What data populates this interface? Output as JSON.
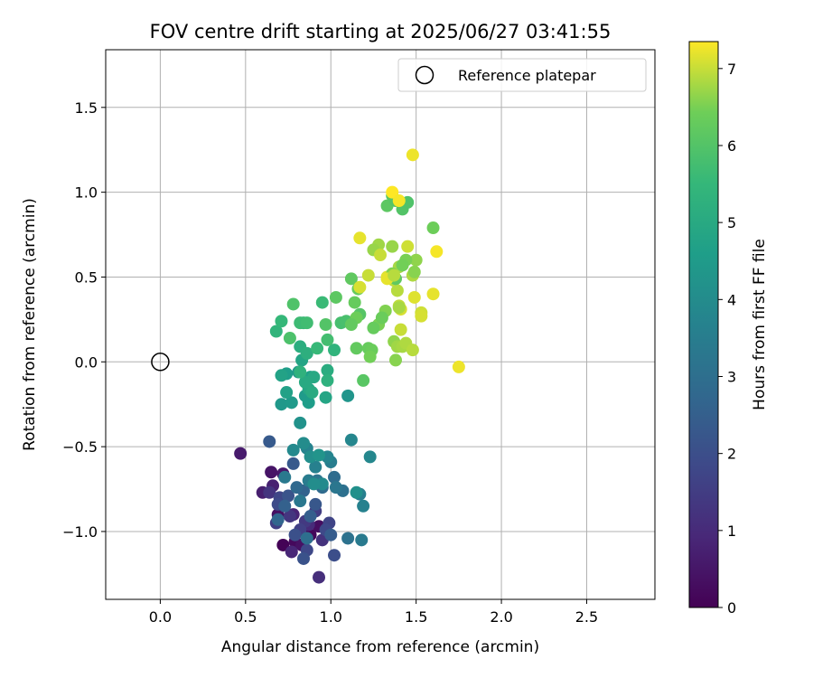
{
  "chart_data": {
    "type": "scatter",
    "title": "FOV centre drift starting at 2025/06/27 03:41:55",
    "xlabel": "Angular distance from reference (arcmin)",
    "ylabel": "Rotation from reference (arcmin)",
    "xlim": [
      -0.32,
      2.9
    ],
    "ylim": [
      -1.4,
      1.84
    ],
    "xticks": [
      0.0,
      0.5,
      1.0,
      1.5,
      2.0,
      2.5
    ],
    "xtick_labels": [
      "0.0",
      "0.5",
      "1.0",
      "1.5",
      "2.0",
      "2.5"
    ],
    "yticks": [
      -1.0,
      -0.5,
      0.0,
      0.5,
      1.0,
      1.5
    ],
    "ytick_labels": [
      "−1.0",
      "−0.5",
      "0.0",
      "0.5",
      "1.0",
      "1.5"
    ],
    "grid": true,
    "legend": {
      "placement": "top-right",
      "entries": [
        "Reference platepar"
      ]
    },
    "reference_point": {
      "x": 0.0,
      "y": 0.0
    },
    "colorbar": {
      "label": "Hours from first FF file",
      "colormap": "viridis",
      "range": [
        0,
        7.35
      ],
      "ticks": [
        0,
        1,
        2,
        3,
        4,
        5,
        6,
        7
      ],
      "tick_labels": [
        "0",
        "1",
        "2",
        "3",
        "4",
        "5",
        "6",
        "7"
      ]
    },
    "points": [
      {
        "x": 0.72,
        "y": -1.08,
        "c": 0.05
      },
      {
        "x": 0.88,
        "y": -1.02,
        "c": 0.15
      },
      {
        "x": 0.79,
        "y": -1.06,
        "c": 0.2
      },
      {
        "x": 0.93,
        "y": -0.97,
        "c": 0.3
      },
      {
        "x": 0.69,
        "y": -0.9,
        "c": 0.35
      },
      {
        "x": 0.83,
        "y": -1.08,
        "c": 0.4
      },
      {
        "x": 0.65,
        "y": -0.65,
        "c": 0.45
      },
      {
        "x": 0.72,
        "y": -0.66,
        "c": 0.55
      },
      {
        "x": 0.47,
        "y": -0.54,
        "c": 0.6
      },
      {
        "x": 0.6,
        "y": -0.77,
        "c": 0.7
      },
      {
        "x": 0.66,
        "y": -0.73,
        "c": 0.75
      },
      {
        "x": 0.78,
        "y": -0.9,
        "c": 0.85
      },
      {
        "x": 0.77,
        "y": -1.12,
        "c": 0.9
      },
      {
        "x": 0.87,
        "y": -0.96,
        "c": 1.0
      },
      {
        "x": 0.93,
        "y": -1.27,
        "c": 1.1
      },
      {
        "x": 0.95,
        "y": -1.05,
        "c": 1.2
      },
      {
        "x": 0.64,
        "y": -0.77,
        "c": 1.25
      },
      {
        "x": 0.76,
        "y": -0.91,
        "c": 1.3
      },
      {
        "x": 0.85,
        "y": -0.94,
        "c": 1.4
      },
      {
        "x": 0.91,
        "y": -0.88,
        "c": 1.5
      },
      {
        "x": 0.68,
        "y": -0.95,
        "c": 1.55
      },
      {
        "x": 0.82,
        "y": -0.99,
        "c": 1.6
      },
      {
        "x": 0.99,
        "y": -0.95,
        "c": 1.7
      },
      {
        "x": 0.7,
        "y": -0.8,
        "c": 1.75
      },
      {
        "x": 0.86,
        "y": -1.11,
        "c": 1.8
      },
      {
        "x": 0.97,
        "y": -0.99,
        "c": 1.85
      },
      {
        "x": 0.69,
        "y": -0.84,
        "c": 1.9
      },
      {
        "x": 1.02,
        "y": -1.14,
        "c": 2.0
      },
      {
        "x": 0.79,
        "y": -1.02,
        "c": 2.05
      },
      {
        "x": 0.84,
        "y": -1.16,
        "c": 2.1
      },
      {
        "x": 0.75,
        "y": -0.79,
        "c": 2.15
      },
      {
        "x": 0.91,
        "y": -0.84,
        "c": 2.25
      },
      {
        "x": 0.78,
        "y": -0.6,
        "c": 2.3
      },
      {
        "x": 0.64,
        "y": -0.47,
        "c": 2.35
      },
      {
        "x": 1.0,
        "y": -1.02,
        "c": 2.4
      },
      {
        "x": 0.88,
        "y": -0.91,
        "c": 2.5
      },
      {
        "x": 0.73,
        "y": -0.85,
        "c": 2.55
      },
      {
        "x": 0.84,
        "y": -0.76,
        "c": 2.6
      },
      {
        "x": 0.69,
        "y": -0.93,
        "c": 2.7
      },
      {
        "x": 0.8,
        "y": -0.74,
        "c": 2.8
      },
      {
        "x": 0.95,
        "y": -0.74,
        "c": 2.85
      },
      {
        "x": 1.02,
        "y": -0.68,
        "c": 2.9
      },
      {
        "x": 0.86,
        "y": -1.04,
        "c": 3.0
      },
      {
        "x": 1.07,
        "y": -0.76,
        "c": 3.05
      },
      {
        "x": 1.1,
        "y": -1.04,
        "c": 3.1
      },
      {
        "x": 0.92,
        "y": -0.7,
        "c": 3.2
      },
      {
        "x": 1.03,
        "y": -0.74,
        "c": 3.25
      },
      {
        "x": 0.82,
        "y": -0.82,
        "c": 3.3
      },
      {
        "x": 0.73,
        "y": -0.68,
        "c": 3.35
      },
      {
        "x": 1.18,
        "y": -1.05,
        "c": 3.4
      },
      {
        "x": 0.87,
        "y": -0.7,
        "c": 3.45
      },
      {
        "x": 1.0,
        "y": -0.59,
        "c": 3.5
      },
      {
        "x": 1.17,
        "y": -0.78,
        "c": 3.55
      },
      {
        "x": 0.91,
        "y": -0.62,
        "c": 3.6
      },
      {
        "x": 1.19,
        "y": -0.85,
        "c": 3.65
      },
      {
        "x": 0.86,
        "y": -0.51,
        "c": 3.7
      },
      {
        "x": 0.98,
        "y": -0.56,
        "c": 3.75
      },
      {
        "x": 1.12,
        "y": -0.46,
        "c": 3.8
      },
      {
        "x": 1.23,
        "y": -0.56,
        "c": 3.85
      },
      {
        "x": 0.78,
        "y": -0.52,
        "c": 3.9
      },
      {
        "x": 0.95,
        "y": -0.72,
        "c": 3.95
      },
      {
        "x": 0.84,
        "y": -0.48,
        "c": 4.0
      },
      {
        "x": 0.9,
        "y": -0.72,
        "c": 4.05
      },
      {
        "x": 0.88,
        "y": -0.56,
        "c": 4.1
      },
      {
        "x": 1.15,
        "y": -0.77,
        "c": 4.15
      },
      {
        "x": 0.82,
        "y": -0.36,
        "c": 4.2
      },
      {
        "x": 0.93,
        "y": -0.55,
        "c": 4.25
      },
      {
        "x": 1.1,
        "y": -0.2,
        "c": 4.3
      },
      {
        "x": 0.81,
        "y": -0.06,
        "c": 4.35
      },
      {
        "x": 0.71,
        "y": -0.25,
        "c": 4.4
      },
      {
        "x": 0.77,
        "y": -0.24,
        "c": 4.45
      },
      {
        "x": 0.85,
        "y": -0.2,
        "c": 4.5
      },
      {
        "x": 0.87,
        "y": -0.24,
        "c": 4.55
      },
      {
        "x": 0.74,
        "y": -0.07,
        "c": 4.6
      },
      {
        "x": 0.88,
        "y": -0.09,
        "c": 4.65
      },
      {
        "x": 0.74,
        "y": -0.18,
        "c": 4.7
      },
      {
        "x": 0.71,
        "y": -0.08,
        "c": 4.75
      },
      {
        "x": 0.83,
        "y": 0.01,
        "c": 4.8
      },
      {
        "x": 0.97,
        "y": -0.21,
        "c": 4.85
      },
      {
        "x": 0.87,
        "y": -0.16,
        "c": 4.9
      },
      {
        "x": 0.9,
        "y": -0.09,
        "c": 4.95
      },
      {
        "x": 0.85,
        "y": -0.12,
        "c": 5.0
      },
      {
        "x": 0.89,
        "y": -0.18,
        "c": 5.05
      },
      {
        "x": 0.98,
        "y": -0.05,
        "c": 5.1
      },
      {
        "x": 0.82,
        "y": 0.09,
        "c": 5.15
      },
      {
        "x": 0.86,
        "y": 0.05,
        "c": 5.2
      },
      {
        "x": 0.98,
        "y": -0.11,
        "c": 5.25
      },
      {
        "x": 0.82,
        "y": -0.06,
        "c": 5.3
      },
      {
        "x": 1.02,
        "y": 0.07,
        "c": 5.35
      },
      {
        "x": 0.68,
        "y": 0.18,
        "c": 5.4
      },
      {
        "x": 0.84,
        "y": 0.23,
        "c": 5.45
      },
      {
        "x": 0.71,
        "y": 0.24,
        "c": 5.5
      },
      {
        "x": 0.92,
        "y": 0.08,
        "c": 5.55
      },
      {
        "x": 0.95,
        "y": 0.35,
        "c": 5.6
      },
      {
        "x": 0.82,
        "y": 0.23,
        "c": 5.65
      },
      {
        "x": 0.86,
        "y": 0.23,
        "c": 5.7
      },
      {
        "x": 0.98,
        "y": 0.13,
        "c": 5.75
      },
      {
        "x": 1.06,
        "y": 0.23,
        "c": 5.8
      },
      {
        "x": 1.09,
        "y": 0.24,
        "c": 5.85
      },
      {
        "x": 0.76,
        "y": 0.14,
        "c": 5.9
      },
      {
        "x": 0.78,
        "y": 0.34,
        "c": 5.95
      },
      {
        "x": 0.97,
        "y": 0.22,
        "c": 6.0
      },
      {
        "x": 1.17,
        "y": 0.28,
        "c": 6.05
      },
      {
        "x": 1.19,
        "y": -0.11,
        "c": 6.1
      },
      {
        "x": 1.03,
        "y": 0.38,
        "c": 6.15
      },
      {
        "x": 1.12,
        "y": 0.49,
        "c": 6.2
      },
      {
        "x": 1.15,
        "y": 0.08,
        "c": 6.25
      },
      {
        "x": 1.22,
        "y": 0.08,
        "c": 6.3
      },
      {
        "x": 1.24,
        "y": 0.07,
        "c": 6.35
      },
      {
        "x": 1.15,
        "y": 0.26,
        "c": 6.4
      },
      {
        "x": 1.23,
        "y": 0.03,
        "c": 6.45
      },
      {
        "x": 1.28,
        "y": 0.22,
        "c": 6.5
      },
      {
        "x": 1.32,
        "y": 0.3,
        "c": 6.55
      },
      {
        "x": 1.38,
        "y": 0.01,
        "c": 6.6
      },
      {
        "x": 1.37,
        "y": 0.12,
        "c": 6.65
      },
      {
        "x": 1.36,
        "y": 0.68,
        "c": 6.7
      },
      {
        "x": 1.39,
        "y": 0.09,
        "c": 6.75
      },
      {
        "x": 1.42,
        "y": 0.09,
        "c": 6.8
      },
      {
        "x": 1.44,
        "y": 0.11,
        "c": 6.85
      },
      {
        "x": 1.48,
        "y": 0.07,
        "c": 6.9
      },
      {
        "x": 1.4,
        "y": 0.33,
        "c": 6.95
      },
      {
        "x": 1.41,
        "y": 0.19,
        "c": 7.0
      },
      {
        "x": 1.53,
        "y": 0.29,
        "c": 7.05
      },
      {
        "x": 1.53,
        "y": 0.27,
        "c": 7.1
      },
      {
        "x": 1.49,
        "y": 0.38,
        "c": 7.15
      },
      {
        "x": 1.6,
        "y": 0.4,
        "c": 7.2
      },
      {
        "x": 1.48,
        "y": 1.22,
        "c": 7.25
      },
      {
        "x": 1.62,
        "y": 0.65,
        "c": 7.3
      },
      {
        "x": 1.75,
        "y": -0.03,
        "c": 7.25
      },
      {
        "x": 1.17,
        "y": 0.73,
        "c": 7.2
      },
      {
        "x": 1.33,
        "y": 0.5,
        "c": 7.15
      },
      {
        "x": 1.41,
        "y": 0.31,
        "c": 7.1
      },
      {
        "x": 1.45,
        "y": 0.68,
        "c": 7.05
      },
      {
        "x": 1.22,
        "y": 0.51,
        "c": 7.0
      },
      {
        "x": 1.37,
        "y": 0.48,
        "c": 6.95
      },
      {
        "x": 1.39,
        "y": 0.42,
        "c": 6.9
      },
      {
        "x": 1.48,
        "y": 0.51,
        "c": 6.85
      },
      {
        "x": 1.4,
        "y": 0.56,
        "c": 6.8
      },
      {
        "x": 1.28,
        "y": 0.69,
        "c": 6.75
      },
      {
        "x": 1.25,
        "y": 0.66,
        "c": 6.7
      },
      {
        "x": 1.5,
        "y": 0.6,
        "c": 6.65
      },
      {
        "x": 1.49,
        "y": 0.53,
        "c": 6.6
      },
      {
        "x": 1.36,
        "y": 0.52,
        "c": 6.55
      },
      {
        "x": 1.44,
        "y": 0.6,
        "c": 6.5
      },
      {
        "x": 1.42,
        "y": 0.57,
        "c": 6.45
      },
      {
        "x": 1.6,
        "y": 0.79,
        "c": 6.4
      },
      {
        "x": 1.3,
        "y": 0.26,
        "c": 6.35
      },
      {
        "x": 1.25,
        "y": 0.2,
        "c": 6.3
      },
      {
        "x": 1.16,
        "y": 0.43,
        "c": 6.3
      },
      {
        "x": 1.12,
        "y": 0.22,
        "c": 6.25
      },
      {
        "x": 1.38,
        "y": 0.49,
        "c": 6.2
      },
      {
        "x": 1.33,
        "y": 0.92,
        "c": 6.15
      },
      {
        "x": 1.36,
        "y": 0.98,
        "c": 6.1
      },
      {
        "x": 1.38,
        "y": 0.95,
        "c": 6.05
      },
      {
        "x": 1.42,
        "y": 0.9,
        "c": 6.0
      },
      {
        "x": 1.45,
        "y": 0.94,
        "c": 5.95
      },
      {
        "x": 1.36,
        "y": 1.0,
        "c": 7.35
      },
      {
        "x": 1.4,
        "y": 0.95,
        "c": 7.3
      },
      {
        "x": 1.33,
        "y": 0.49,
        "c": 7.2
      },
      {
        "x": 1.29,
        "y": 0.63,
        "c": 7.0
      },
      {
        "x": 1.14,
        "y": 0.35,
        "c": 6.3
      },
      {
        "x": 1.17,
        "y": 0.44,
        "c": 7.1
      },
      {
        "x": 1.4,
        "y": 0.32,
        "c": 6.8
      },
      {
        "x": 1.37,
        "y": 0.51,
        "c": 6.9
      }
    ]
  }
}
